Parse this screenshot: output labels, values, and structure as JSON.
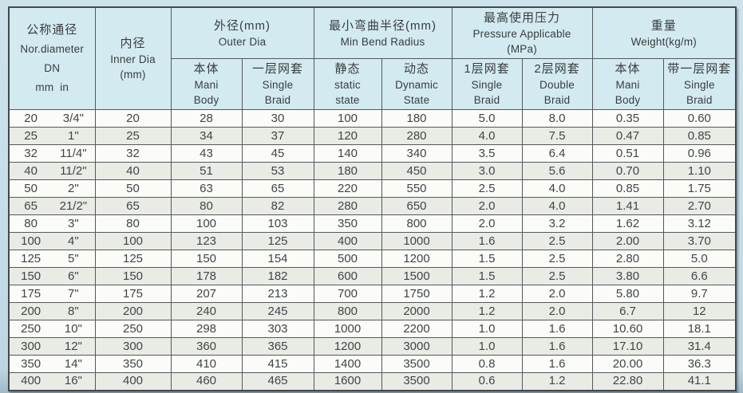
{
  "colors": {
    "page_bg": "#c2dce7",
    "header_bg": "#d3eaf0",
    "row_alt_bg": "#e9ece5",
    "border": "#53585b",
    "text": "#404548"
  },
  "table": {
    "groups": {
      "dn": {
        "zh": "公称通径",
        "en": "Nor.diameter",
        "code": "DN",
        "units": "mm  in"
      },
      "inner": {
        "zh": "内径",
        "en": "Inner Dia",
        "unit": "(mm)"
      },
      "outer": {
        "zh": "外径(mm)",
        "en": "Outer Dia"
      },
      "bend": {
        "zh": "最小弯曲半径(mm)",
        "en": "Min Bend Radius"
      },
      "pressure": {
        "zh": "最高使用压力",
        "en": "Pressure Applicable",
        "unit": "(MPa)"
      },
      "weight": {
        "zh": "重量",
        "en": "Weight(kg/m)"
      }
    },
    "sub_headers": [
      {
        "zh": "本体",
        "en1": "Mani",
        "en2": "Body"
      },
      {
        "zh": "一层网套",
        "en1": "Single",
        "en2": "Braid"
      },
      {
        "zh": "静态",
        "en1": "static",
        "en2": "state"
      },
      {
        "zh": "动态",
        "en1": "Dynamic",
        "en2": "State"
      },
      {
        "zh": "1层网套",
        "en1": "Single",
        "en2": "Braid"
      },
      {
        "zh": "2层网套",
        "en1": "Double",
        "en2": "Braid"
      },
      {
        "zh": "本体",
        "en1": "Mani",
        "en2": "Body"
      },
      {
        "zh": "带一层网套",
        "en1": "Single",
        "en2": "Braid"
      }
    ],
    "rows": [
      {
        "dn_mm": "20",
        "dn_in": "3/4\"",
        "inner": "20",
        "outer_body": "28",
        "outer_braid": "30",
        "bend_static": "100",
        "bend_dynamic": "180",
        "press_single": "5.0",
        "press_double": "8.0",
        "weight_body": "0.35",
        "weight_braid": "0.60"
      },
      {
        "dn_mm": "25",
        "dn_in": "1\"",
        "inner": "25",
        "outer_body": "34",
        "outer_braid": "37",
        "bend_static": "120",
        "bend_dynamic": "280",
        "press_single": "4.0",
        "press_double": "7.5",
        "weight_body": "0.47",
        "weight_braid": "0.85"
      },
      {
        "dn_mm": "32",
        "dn_in": "11/4\"",
        "inner": "32",
        "outer_body": "43",
        "outer_braid": "45",
        "bend_static": "140",
        "bend_dynamic": "340",
        "press_single": "3.5",
        "press_double": "6.4",
        "weight_body": "0.51",
        "weight_braid": "0.96"
      },
      {
        "dn_mm": "40",
        "dn_in": "11/2\"",
        "inner": "40",
        "outer_body": "51",
        "outer_braid": "53",
        "bend_static": "180",
        "bend_dynamic": "450",
        "press_single": "3.0",
        "press_double": "5.6",
        "weight_body": "0.70",
        "weight_braid": "1.10"
      },
      {
        "dn_mm": "50",
        "dn_in": "2\"",
        "inner": "50",
        "outer_body": "63",
        "outer_braid": "65",
        "bend_static": "220",
        "bend_dynamic": "550",
        "press_single": "2.5",
        "press_double": "4.0",
        "weight_body": "0.85",
        "weight_braid": "1.75"
      },
      {
        "dn_mm": "65",
        "dn_in": "21/2\"",
        "inner": "65",
        "outer_body": "80",
        "outer_braid": "82",
        "bend_static": "280",
        "bend_dynamic": "650",
        "press_single": "2.0",
        "press_double": "4.0",
        "weight_body": "1.41",
        "weight_braid": "2.70"
      },
      {
        "dn_mm": "80",
        "dn_in": "3\"",
        "inner": "80",
        "outer_body": "100",
        "outer_braid": "103",
        "bend_static": "350",
        "bend_dynamic": "800",
        "press_single": "2.0",
        "press_double": "3.2",
        "weight_body": "1.62",
        "weight_braid": "3.12"
      },
      {
        "dn_mm": "100",
        "dn_in": "4\"",
        "inner": "100",
        "outer_body": "123",
        "outer_braid": "125",
        "bend_static": "400",
        "bend_dynamic": "1000",
        "press_single": "1.6",
        "press_double": "2.5",
        "weight_body": "2.00",
        "weight_braid": "3.70"
      },
      {
        "dn_mm": "125",
        "dn_in": "5\"",
        "inner": "125",
        "outer_body": "150",
        "outer_braid": "154",
        "bend_static": "500",
        "bend_dynamic": "1200",
        "press_single": "1.5",
        "press_double": "2.5",
        "weight_body": "2.80",
        "weight_braid": "5.0"
      },
      {
        "dn_mm": "150",
        "dn_in": "6\"",
        "inner": "150",
        "outer_body": "178",
        "outer_braid": "182",
        "bend_static": "600",
        "bend_dynamic": "1500",
        "press_single": "1.5",
        "press_double": "2.5",
        "weight_body": "3.80",
        "weight_braid": "6.6"
      },
      {
        "dn_mm": "175",
        "dn_in": "7\"",
        "inner": "175",
        "outer_body": "207",
        "outer_braid": "213",
        "bend_static": "700",
        "bend_dynamic": "1750",
        "press_single": "1.2",
        "press_double": "2.0",
        "weight_body": "5.80",
        "weight_braid": "9.7"
      },
      {
        "dn_mm": "200",
        "dn_in": "8\"",
        "inner": "200",
        "outer_body": "240",
        "outer_braid": "245",
        "bend_static": "800",
        "bend_dynamic": "2000",
        "press_single": "1.2",
        "press_double": "2.0",
        "weight_body": "6.7",
        "weight_braid": "12"
      },
      {
        "dn_mm": "250",
        "dn_in": "10\"",
        "inner": "250",
        "outer_body": "298",
        "outer_braid": "303",
        "bend_static": "1000",
        "bend_dynamic": "2200",
        "press_single": "1.0",
        "press_double": "1.6",
        "weight_body": "10.60",
        "weight_braid": "18.1"
      },
      {
        "dn_mm": "300",
        "dn_in": "12\"",
        "inner": "300",
        "outer_body": "360",
        "outer_braid": "365",
        "bend_static": "1200",
        "bend_dynamic": "3000",
        "press_single": "1.0",
        "press_double": "1.6",
        "weight_body": "17.10",
        "weight_braid": "31.4"
      },
      {
        "dn_mm": "350",
        "dn_in": "14\"",
        "inner": "350",
        "outer_body": "410",
        "outer_braid": "415",
        "bend_static": "1400",
        "bend_dynamic": "3500",
        "press_single": "0.8",
        "press_double": "1.6",
        "weight_body": "20.00",
        "weight_braid": "36.3"
      },
      {
        "dn_mm": "400",
        "dn_in": "16\"",
        "inner": "400",
        "outer_body": "460",
        "outer_braid": "465",
        "bend_static": "1600",
        "bend_dynamic": "3500",
        "press_single": "0.6",
        "press_double": "1.2",
        "weight_body": "22.80",
        "weight_braid": "41.1"
      }
    ]
  }
}
